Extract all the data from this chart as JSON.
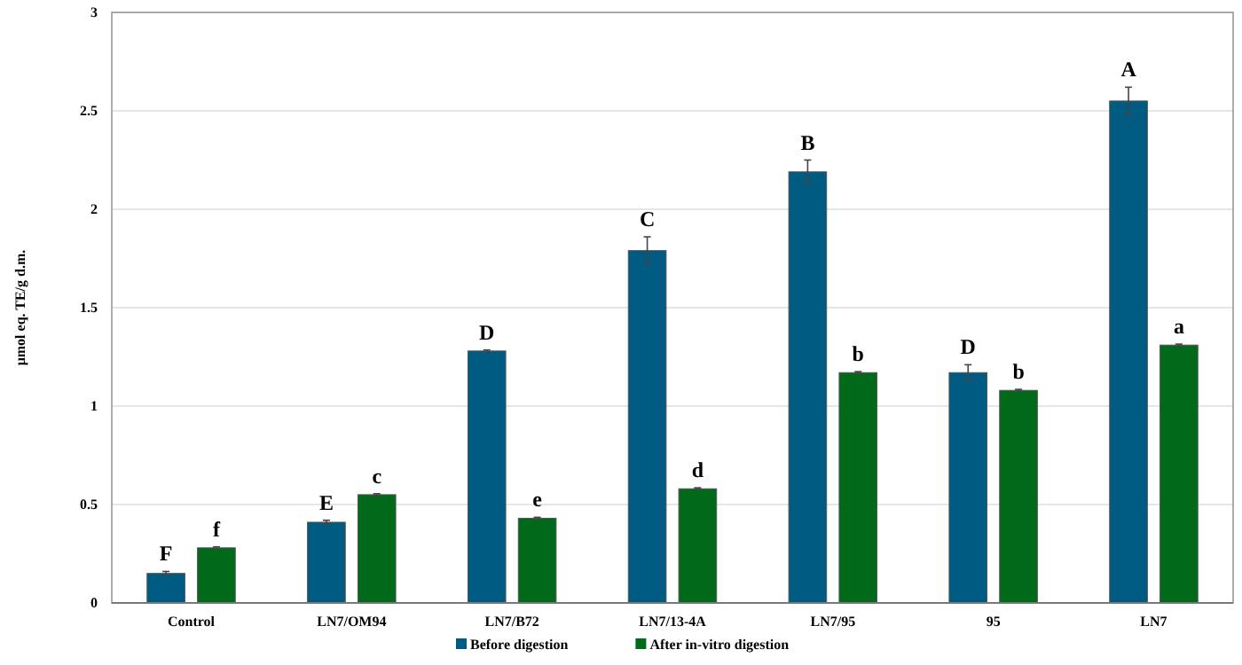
{
  "chart_data": {
    "type": "bar",
    "ylabel": "μmol eq. TE/g d.m.",
    "categories": [
      "Control",
      "LN7/OM94",
      "LN7/B72",
      "LN7/13-4A",
      "LN7/95",
      "95",
      "LN7"
    ],
    "series": [
      {
        "name": "Before digestion",
        "color": "#005b82",
        "values": [
          0.15,
          0.41,
          1.28,
          1.79,
          2.19,
          1.17,
          2.55
        ],
        "errors": [
          0.01,
          0.01,
          0.005,
          0.07,
          0.06,
          0.04,
          0.07
        ]
      },
      {
        "name": "After in-vitro digestion",
        "color": "#006a1a",
        "values": [
          0.28,
          0.55,
          0.43,
          0.58,
          1.17,
          1.08,
          1.31
        ],
        "errors": [
          0.005,
          0.005,
          0.005,
          0.005,
          0.005,
          0.005,
          0.005
        ]
      }
    ],
    "annotations": [
      {
        "text": "F",
        "x": "Control",
        "y": 0.15
      },
      {
        "text": "E",
        "x": "LN7/OM94",
        "y": 0.41
      },
      {
        "text": "D",
        "x": "LN7/B72",
        "y": 1.28
      },
      {
        "text": "C",
        "x": "LN7/13-4A",
        "y": 1.79
      },
      {
        "text": "B",
        "x": "LN7/95",
        "y": 2.19
      },
      {
        "text": "D",
        "x": "95",
        "y": 1.17
      },
      {
        "text": "A",
        "x": "LN7",
        "y": 2.55
      },
      {
        "text": "f",
        "x": "Control",
        "y": 0.28
      },
      {
        "text": "c",
        "x": "LN7/OM94",
        "y": 0.55
      },
      {
        "text": "e",
        "x": "LN7/B72",
        "y": 0.43
      },
      {
        "text": "d",
        "x": "LN7/13-4A",
        "y": 0.58
      },
      {
        "text": "b",
        "x": "LN7/95",
        "y": 1.17
      },
      {
        "text": "b",
        "x": "95",
        "y": 1.08
      },
      {
        "text": "a",
        "x": "LN7",
        "y": 1.31
      }
    ],
    "ylim": [
      0,
      3
    ],
    "yticks": [
      0,
      0.5,
      1,
      1.5,
      2,
      2.5,
      3
    ],
    "grid": "y",
    "legend": "bottom"
  }
}
